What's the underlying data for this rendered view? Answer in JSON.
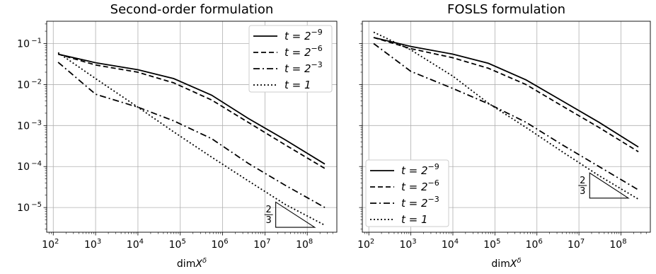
{
  "chart_data": [
    {
      "type": "line",
      "title": "Second-order formulation",
      "xlabel": "dim X^δ",
      "ylabel": "",
      "xscale": "log",
      "yscale": "log",
      "xlim": [
        70,
        500000000
      ],
      "ylim": [
        2.5e-06,
        0.35
      ],
      "xticks": [
        100,
        1000,
        10000,
        100000,
        1000000,
        10000000,
        100000000
      ],
      "xtick_labels": [
        {
          "base": "10",
          "exp": "2"
        },
        {
          "base": "10",
          "exp": "3"
        },
        {
          "base": "10",
          "exp": "4"
        },
        {
          "base": "10",
          "exp": "5"
        },
        {
          "base": "10",
          "exp": "6"
        },
        {
          "base": "10",
          "exp": "7"
        },
        {
          "base": "10",
          "exp": "8"
        }
      ],
      "yticks": [
        1e-05,
        0.0001,
        0.001,
        0.01,
        0.1
      ],
      "ytick_labels": [
        {
          "base": "10",
          "exp": "−5"
        },
        {
          "base": "10",
          "exp": "−4"
        },
        {
          "base": "10",
          "exp": "−3"
        },
        {
          "base": "10",
          "exp": "−2"
        },
        {
          "base": "10",
          "exp": "−1"
        }
      ],
      "grid": true,
      "legend_position": "top-right",
      "series": [
        {
          "name": "t = 2^-9",
          "lhs": "t = 2",
          "exp": "−9",
          "dash": "solid",
          "x": [
            130,
            1000,
            10000,
            70000,
            550000,
            4000000,
            30000000,
            260000000
          ],
          "y": [
            0.055,
            0.034,
            0.023,
            0.014,
            0.0055,
            0.0015,
            0.00045,
            0.000115
          ]
        },
        {
          "name": "t = 2^-6",
          "lhs": "t = 2",
          "exp": "−6",
          "dash": "dashed",
          "x": [
            130,
            1000,
            10000,
            70000,
            550000,
            4000000,
            30000000,
            260000000
          ],
          "y": [
            0.055,
            0.03,
            0.02,
            0.011,
            0.0042,
            0.0012,
            0.00034,
            9e-05
          ]
        },
        {
          "name": "t = 2^-3",
          "lhs": "t = 2",
          "exp": "−3",
          "dash": "dashdot",
          "x": [
            130,
            1000,
            10000,
            70000,
            550000,
            4000000,
            30000000,
            260000000
          ],
          "y": [
            0.035,
            0.0058,
            0.0028,
            0.0013,
            0.00048,
            0.00012,
            3.5e-05,
            1e-05
          ]
        },
        {
          "name": "t = 1",
          "lhs": "t = 1",
          "exp": "",
          "dash": "dotted",
          "x": [
            130,
            1000,
            10000,
            70000,
            550000,
            4000000,
            30000000,
            260000000
          ],
          "y": [
            0.06,
            0.014,
            0.0028,
            0.0007,
            0.00017,
            4.5e-05,
            1.2e-05,
            3.7e-06
          ]
        }
      ],
      "slope_triangle": {
        "label_num": "2",
        "label_den": "3",
        "x0": 18000000,
        "x1": 150000000,
        "y_base": 3.3e-06,
        "location": "bottom-right"
      }
    },
    {
      "type": "line",
      "title": "FOSLS formulation",
      "xlabel": "dim X^δ",
      "ylabel": "",
      "xscale": "log",
      "yscale": "log",
      "xlim": [
        70,
        500000000
      ],
      "ylim": [
        2.5e-06,
        0.35
      ],
      "xticks": [
        100,
        1000,
        10000,
        100000,
        1000000,
        10000000,
        100000000
      ],
      "xtick_labels": [
        {
          "base": "10",
          "exp": "2"
        },
        {
          "base": "10",
          "exp": "3"
        },
        {
          "base": "10",
          "exp": "4"
        },
        {
          "base": "10",
          "exp": "5"
        },
        {
          "base": "10",
          "exp": "6"
        },
        {
          "base": "10",
          "exp": "7"
        },
        {
          "base": "10",
          "exp": "8"
        }
      ],
      "yticks": [
        1e-05,
        0.0001,
        0.001,
        0.01,
        0.1
      ],
      "ytick_labels": [],
      "grid": true,
      "legend_position": "bottom-left",
      "series": [
        {
          "name": "t = 2^-9",
          "lhs": "t = 2",
          "exp": "−9",
          "dash": "solid",
          "x": [
            130,
            1000,
            10000,
            70000,
            550000,
            4000000,
            30000000,
            260000000
          ],
          "y": [
            0.14,
            0.085,
            0.055,
            0.033,
            0.013,
            0.004,
            0.0012,
            0.0003
          ]
        },
        {
          "name": "t = 2^-6",
          "lhs": "t = 2",
          "exp": "−6",
          "dash": "dashed",
          "x": [
            130,
            1000,
            10000,
            70000,
            550000,
            4000000,
            30000000,
            260000000
          ],
          "y": [
            0.14,
            0.075,
            0.045,
            0.025,
            0.01,
            0.003,
            0.0009,
            0.00023
          ]
        },
        {
          "name": "t = 2^-3",
          "lhs": "t = 2",
          "exp": "−3",
          "dash": "dashdot",
          "x": [
            130,
            1000,
            10000,
            70000,
            550000,
            4000000,
            30000000,
            260000000
          ],
          "y": [
            0.1,
            0.021,
            0.008,
            0.0034,
            0.0012,
            0.00034,
            0.0001,
            2.7e-05
          ]
        },
        {
          "name": "t = 1",
          "lhs": "t = 1",
          "exp": "",
          "dash": "dotted",
          "x": [
            130,
            1000,
            10000,
            70000,
            550000,
            4000000,
            30000000,
            260000000
          ],
          "y": [
            0.19,
            0.07,
            0.016,
            0.0035,
            0.0009,
            0.00023,
            6e-05,
            1.6e-05
          ]
        }
      ],
      "slope_triangle": {
        "label_num": "2",
        "label_den": "3",
        "x0": 18000000,
        "x1": 150000000,
        "y_base": 1.7e-05,
        "location": "right"
      }
    }
  ]
}
